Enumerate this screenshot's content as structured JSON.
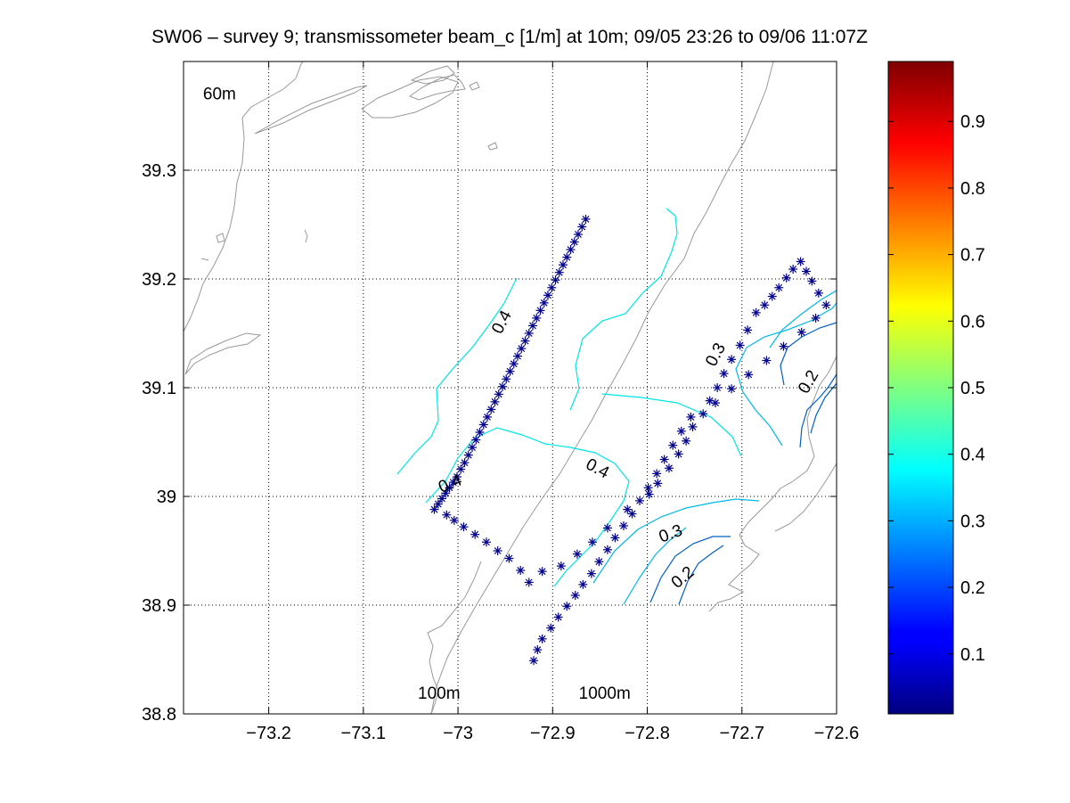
{
  "chart_data": {
    "type": "scatter",
    "title": "SW06 – survey 9; transmissometer beam_c [1/m] at 10m; 09/05 23:26 to 09/06 11:07Z",
    "xlabel": "",
    "ylabel": "",
    "xlim": [
      -73.29,
      -72.6
    ],
    "ylim": [
      38.8,
      39.4
    ],
    "x_ticks": [
      -73.2,
      -73.1,
      -73.0,
      -72.9,
      -72.8,
      -72.7,
      -72.6
    ],
    "x_tick_labels": [
      "−73.2",
      "−73.1",
      "−73",
      "−72.9",
      "−72.8",
      "−72.7",
      "−72.6"
    ],
    "y_ticks": [
      38.8,
      38.9,
      39.0,
      39.1,
      39.2,
      39.3
    ],
    "y_tick_labels": [
      "38.8",
      "38.9",
      "39",
      "39.1",
      "39.2",
      "39.3"
    ],
    "grid": true,
    "depth_labels": [
      {
        "text": "60m",
        "x": -73.252,
        "y": 39.365
      },
      {
        "text": "100m",
        "x": -73.02,
        "y": 38.814
      },
      {
        "text": "1000m",
        "x": -72.845,
        "y": 38.814
      }
    ],
    "stations": {
      "marker": "*",
      "color": "#00008b",
      "x": [
        -72.865,
        -72.869,
        -72.873,
        -72.877,
        -72.881,
        -72.885,
        -72.889,
        -72.893,
        -72.897,
        -72.901,
        -72.905,
        -72.909,
        -72.913,
        -72.917,
        -72.921,
        -72.925,
        -72.929,
        -72.933,
        -72.937,
        -72.941,
        -72.945,
        -72.949,
        -72.953,
        -72.957,
        -72.961,
        -72.965,
        -72.969,
        -72.973,
        -72.977,
        -72.981,
        -72.985,
        -72.989,
        -72.993,
        -72.997,
        -73.001,
        -73.005,
        -73.009,
        -73.013,
        -73.017,
        -73.021,
        -73.025,
        -73.012,
        -73.004,
        -72.994,
        -72.982,
        -72.97,
        -72.958,
        -72.946,
        -72.934,
        -72.925,
        -72.911,
        -72.891,
        -72.874,
        -72.858,
        -72.842,
        -72.821,
        -72.798,
        -72.789,
        -72.777,
        -72.767,
        -72.759,
        -72.752,
        -72.741,
        -72.734,
        -72.726,
        -72.719,
        -72.711,
        -72.702,
        -72.694,
        -72.685,
        -72.676,
        -72.668,
        -72.661,
        -72.653,
        -72.646,
        -72.638,
        -72.632,
        -72.626,
        -72.619,
        -72.611,
        -72.622,
        -72.637,
        -72.656,
        -72.674,
        -72.693,
        -72.711,
        -72.728,
        -72.754,
        -72.764,
        -72.773,
        -72.782,
        -72.79,
        -72.799,
        -72.808,
        -72.816,
        -72.825,
        -72.834,
        -72.842,
        -72.851,
        -72.859,
        -72.868,
        -72.876,
        -72.885,
        -72.894,
        -72.902,
        -72.911,
        -72.916,
        -72.92
      ],
      "y": [
        39.255,
        39.248,
        39.241,
        39.234,
        39.227,
        39.22,
        39.213,
        39.206,
        39.199,
        39.192,
        39.185,
        39.178,
        39.171,
        39.164,
        39.157,
        39.15,
        39.143,
        39.136,
        39.129,
        39.122,
        39.115,
        39.108,
        39.101,
        39.094,
        39.087,
        39.08,
        39.073,
        39.066,
        39.059,
        39.052,
        39.045,
        39.038,
        39.031,
        39.025,
        39.018,
        39.013,
        39.008,
        39.003,
        38.998,
        38.993,
        38.988,
        38.983,
        38.978,
        38.972,
        38.965,
        38.958,
        38.95,
        38.943,
        38.932,
        38.921,
        38.931,
        38.936,
        38.947,
        38.958,
        38.971,
        38.988,
        39.002,
        39.012,
        39.026,
        39.039,
        39.051,
        39.064,
        39.076,
        39.088,
        39.1,
        39.113,
        39.126,
        39.139,
        39.153,
        39.169,
        39.176,
        39.184,
        39.192,
        39.201,
        39.209,
        39.216,
        39.207,
        39.198,
        39.187,
        39.176,
        39.164,
        39.151,
        39.138,
        39.125,
        39.112,
        39.099,
        39.086,
        39.073,
        39.06,
        39.047,
        39.034,
        39.021,
        39.008,
        38.996,
        38.984,
        38.973,
        38.962,
        38.951,
        38.94,
        38.929,
        38.919,
        38.909,
        38.899,
        38.889,
        38.879,
        38.869,
        38.859,
        38.849
      ]
    },
    "contour_labels": [
      {
        "text": "0.4",
        "x": -72.953,
        "y": 39.16,
        "angle": -62
      },
      {
        "text": "0.4",
        "x": -73.008,
        "y": 39.011,
        "angle": -22
      },
      {
        "text": "0.4",
        "x": -72.853,
        "y": 39.025,
        "angle": 28
      },
      {
        "text": "0.3",
        "x": -72.727,
        "y": 39.13,
        "angle": -62
      },
      {
        "text": "0.2",
        "x": -72.629,
        "y": 39.105,
        "angle": -60
      },
      {
        "text": "0.3",
        "x": -72.775,
        "y": 38.965,
        "angle": -20
      },
      {
        "text": "0.2",
        "x": -72.762,
        "y": 38.925,
        "angle": -40
      }
    ],
    "colorbar": {
      "colormap": "jet",
      "range": [
        0.01,
        0.99
      ],
      "ticks": [
        0.1,
        0.2,
        0.3,
        0.4,
        0.5,
        0.6,
        0.7,
        0.8,
        0.9
      ],
      "tick_labels": [
        "0.1",
        "0.2",
        "0.3",
        "0.4",
        "0.5",
        "0.6",
        "0.7",
        "0.8",
        "0.9"
      ]
    },
    "colors": {
      "bathymetry": "#999999",
      "contour_04": "#00e5e5",
      "contour_03": "#00a8e0",
      "contour_02": "#0060c0",
      "markers": "#00008b"
    }
  }
}
